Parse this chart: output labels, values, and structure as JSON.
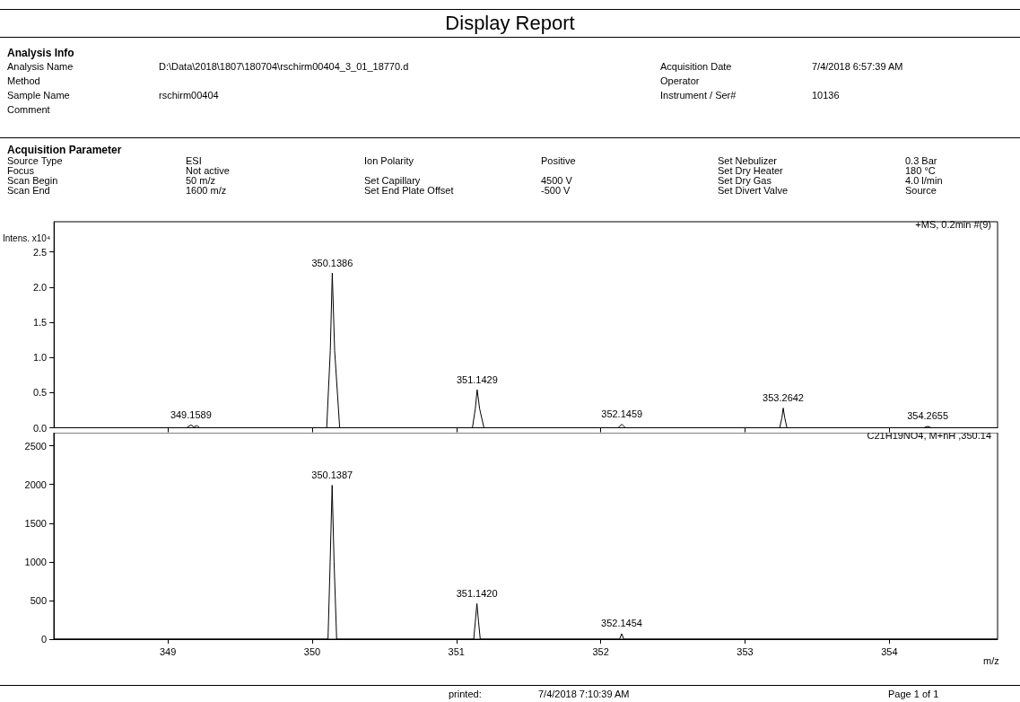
{
  "chart_data": [
    {
      "type": "other",
      "title": "Display Report",
      "subtitle": "Analysis Info",
      "annotations": [
        "Analysis Name",
        "D:\\Data\\2018\\1807\\180704\\rschirm00404_3_01_18770.d",
        "Acquisition Date",
        "7/4/2018 6:57:39 AM",
        "Method",
        null,
        "Operator",
        null,
        "Sample Name",
        "rschirm00404",
        "Instrument / Ser#",
        "10136",
        "Comment",
        null,
        null,
        null
      ]
    },
    {
      "type": "other",
      "title": "Acquisition Parameter",
      "annotations": [
        "Source Type",
        "ESI",
        "Ion Polarity",
        "Positive",
        "Set Nebulizer",
        "0.3 Bar",
        "Focus",
        "Not active",
        null,
        null,
        "Set Dry Heater",
        "180 °C",
        "Scan Begin",
        "50 m/z",
        "Set Capillary",
        "4500 V",
        "Set Dry Gas",
        "4.0 l/min",
        "Scan End",
        "1600 m/z",
        "Set End Plate Offset",
        "-500 V",
        "Set Divert Valve",
        "Source"
      ]
    },
    {
      "type": "line",
      "subtitle": "+MS, 0.2min #(9)",
      "ylabel": "Intens. x10⁴",
      "marker": "none",
      "tick_labels": "y",
      "xlim": [
        348.21,
        354.75
      ],
      "xticks": [
        349,
        350,
        351,
        352,
        353,
        354
      ],
      "ylim": [
        0,
        2.93
      ],
      "yticks": [
        {
          "value": 0,
          "label": "0.0"
        },
        {
          "value": 0.5,
          "label": "0.5"
        },
        {
          "value": 1,
          "label": "1.0"
        },
        {
          "value": 1.5,
          "label": "1.5"
        },
        {
          "value": 2,
          "label": "2.0"
        },
        {
          "value": 2.5,
          "label": "2.5"
        }
      ],
      "series": [
        {
          "color": "#000000",
          "x": [
            348.21,
            349.13,
            349.1589,
            349.18,
            349.2,
            349.22,
            350.1,
            350.125,
            350.1386,
            350.155,
            350.19,
            351.11,
            351.13,
            351.1429,
            351.16,
            351.19,
            352.12,
            352.1459,
            352.17,
            353.24,
            353.255,
            353.2642,
            353.275,
            353.29,
            354.24,
            354.2655,
            354.29,
            354.75
          ],
          "values": [
            0,
            0,
            0.04,
            0.01,
            0.03,
            0,
            0,
            1.1,
            2.2,
            1.1,
            0,
            0,
            0.27,
            0.54,
            0.27,
            0,
            0,
            0.05,
            0,
            0,
            0.14,
            0.28,
            0.14,
            0,
            0,
            0.02,
            0,
            0
          ]
        }
      ],
      "annotations": [
        {
          "text": "349.1589",
          "x": 349.1589,
          "y": 0.04
        },
        {
          "text": "350.1386",
          "x": 350.1386,
          "y": 2.2
        },
        {
          "text": "351.1429",
          "x": 351.1429,
          "y": 0.54
        },
        {
          "text": "352.1459",
          "x": 352.1459,
          "y": 0.05
        },
        {
          "text": "353.2642",
          "x": 353.2642,
          "y": 0.28
        },
        {
          "text": "354.2655",
          "x": 354.2655,
          "y": 0.02
        }
      ]
    },
    {
      "type": "line",
      "subtitle": "C21H19NO4, M+nH ,350.14",
      "xlabel": "m/z",
      "marker": "none",
      "xlim": [
        348.21,
        354.75
      ],
      "xticks": [
        349,
        350,
        351,
        352,
        353,
        354
      ],
      "ylim": [
        0,
        2670
      ],
      "yticks": [
        0,
        500,
        1000,
        1500,
        2000,
        2500
      ],
      "series": [
        {
          "color": "#000000",
          "x": [
            348.21,
            350.11,
            350.125,
            350.1387,
            350.152,
            350.17,
            351.12,
            351.131,
            351.142,
            351.153,
            351.165,
            352.13,
            352.1454,
            352.16,
            354.75
          ],
          "values": [
            0,
            0,
            1000,
            1990,
            1000,
            0,
            0,
            230,
            460,
            230,
            0,
            0,
            70,
            0,
            0
          ]
        }
      ],
      "annotations": [
        {
          "text": "350.1387",
          "x": 350.1387,
          "y": 1990
        },
        {
          "text": "351.1420",
          "x": 351.142,
          "y": 460
        },
        {
          "text": "352.1454",
          "x": 352.1454,
          "y": 70
        }
      ]
    },
    {
      "type": "other",
      "annotations": [
        "printed:",
        "7/4/2018 7:10:39 AM",
        "Page 1 of 1"
      ]
    }
  ]
}
